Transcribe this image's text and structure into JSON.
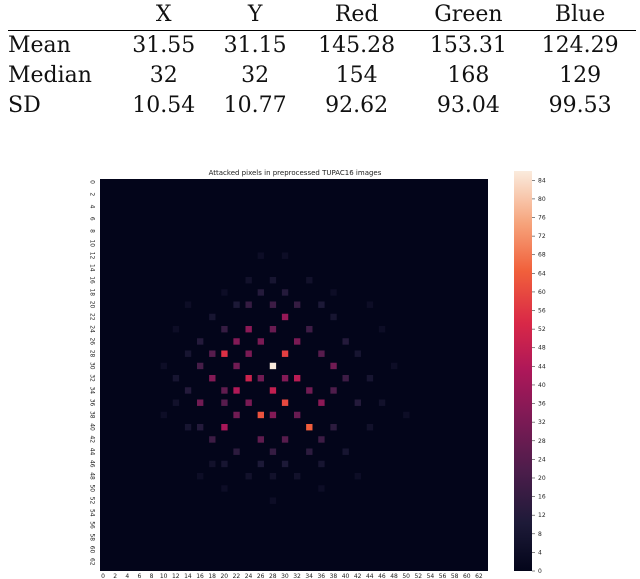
{
  "table": {
    "columns": [
      "X",
      "Y",
      "Red",
      "Green",
      "Blue"
    ],
    "rows": [
      {
        "label": "Mean",
        "values": [
          "31.55",
          "31.15",
          "145.28",
          "153.31",
          "124.29"
        ]
      },
      {
        "label": "Median",
        "values": [
          "32",
          "32",
          "154",
          "168",
          "129"
        ]
      },
      {
        "label": "SD",
        "values": [
          "10.54",
          "10.77",
          "92.62",
          "93.04",
          "99.53"
        ]
      }
    ]
  },
  "chart_data": {
    "type": "heatmap",
    "title": "Attacked pixels in preprocessed TUPAC16 images",
    "grid_size": 64,
    "x_tick_labels": [
      "0",
      "2",
      "4",
      "6",
      "8",
      "10",
      "12",
      "14",
      "16",
      "18",
      "20",
      "22",
      "24",
      "26",
      "28",
      "30",
      "32",
      "34",
      "36",
      "38",
      "40",
      "42",
      "44",
      "46",
      "48",
      "50",
      "52",
      "54",
      "56",
      "58",
      "60",
      "62"
    ],
    "y_tick_labels": [
      "0",
      "2",
      "4",
      "6",
      "8",
      "10",
      "12",
      "14",
      "16",
      "18",
      "20",
      "22",
      "24",
      "26",
      "28",
      "30",
      "32",
      "34",
      "36",
      "38",
      "40",
      "42",
      "44",
      "46",
      "48",
      "50",
      "52",
      "54",
      "56",
      "58",
      "60",
      "62"
    ],
    "colorbar": {
      "min": 0,
      "max": 86,
      "ticks": [
        0,
        4,
        8,
        12,
        16,
        20,
        24,
        28,
        32,
        36,
        40,
        44,
        48,
        52,
        56,
        60,
        64,
        68,
        72,
        76,
        80,
        84
      ],
      "colormap": "rocket"
    },
    "background_value": 0,
    "cells": [
      {
        "x": 28,
        "y": 30,
        "value": 86
      },
      {
        "x": 20,
        "y": 28,
        "value": 55
      },
      {
        "x": 30,
        "y": 28,
        "value": 58
      },
      {
        "x": 26,
        "y": 38,
        "value": 62
      },
      {
        "x": 34,
        "y": 40,
        "value": 64
      },
      {
        "x": 30,
        "y": 36,
        "value": 60
      },
      {
        "x": 24,
        "y": 32,
        "value": 50
      },
      {
        "x": 28,
        "y": 34,
        "value": 48
      },
      {
        "x": 22,
        "y": 34,
        "value": 44
      },
      {
        "x": 32,
        "y": 32,
        "value": 46
      },
      {
        "x": 20,
        "y": 40,
        "value": 42
      },
      {
        "x": 24,
        "y": 24,
        "value": 36
      },
      {
        "x": 30,
        "y": 22,
        "value": 38
      },
      {
        "x": 18,
        "y": 32,
        "value": 34
      },
      {
        "x": 36,
        "y": 36,
        "value": 36
      },
      {
        "x": 26,
        "y": 26,
        "value": 32
      },
      {
        "x": 16,
        "y": 36,
        "value": 30
      },
      {
        "x": 38,
        "y": 30,
        "value": 30
      },
      {
        "x": 22,
        "y": 26,
        "value": 34
      },
      {
        "x": 32,
        "y": 26,
        "value": 32
      },
      {
        "x": 28,
        "y": 24,
        "value": 28
      },
      {
        "x": 24,
        "y": 28,
        "value": 32
      },
      {
        "x": 26,
        "y": 32,
        "value": 30
      },
      {
        "x": 22,
        "y": 30,
        "value": 30
      },
      {
        "x": 30,
        "y": 32,
        "value": 34
      },
      {
        "x": 34,
        "y": 34,
        "value": 30
      },
      {
        "x": 28,
        "y": 38,
        "value": 34
      },
      {
        "x": 24,
        "y": 36,
        "value": 32
      },
      {
        "x": 22,
        "y": 38,
        "value": 30
      },
      {
        "x": 32,
        "y": 38,
        "value": 28
      },
      {
        "x": 26,
        "y": 42,
        "value": 26
      },
      {
        "x": 30,
        "y": 42,
        "value": 24
      },
      {
        "x": 36,
        "y": 28,
        "value": 24
      },
      {
        "x": 18,
        "y": 28,
        "value": 24
      },
      {
        "x": 20,
        "y": 34,
        "value": 26
      },
      {
        "x": 20,
        "y": 36,
        "value": 24
      },
      {
        "x": 38,
        "y": 34,
        "value": 22
      },
      {
        "x": 16,
        "y": 30,
        "value": 20
      },
      {
        "x": 40,
        "y": 32,
        "value": 18
      },
      {
        "x": 36,
        "y": 42,
        "value": 18
      },
      {
        "x": 18,
        "y": 42,
        "value": 18
      },
      {
        "x": 28,
        "y": 20,
        "value": 18
      },
      {
        "x": 32,
        "y": 20,
        "value": 16
      },
      {
        "x": 24,
        "y": 20,
        "value": 16
      },
      {
        "x": 34,
        "y": 24,
        "value": 18
      },
      {
        "x": 20,
        "y": 24,
        "value": 16
      },
      {
        "x": 28,
        "y": 44,
        "value": 16
      },
      {
        "x": 22,
        "y": 44,
        "value": 14
      },
      {
        "x": 34,
        "y": 44,
        "value": 14
      },
      {
        "x": 14,
        "y": 34,
        "value": 12
      },
      {
        "x": 42,
        "y": 36,
        "value": 12
      },
      {
        "x": 40,
        "y": 26,
        "value": 12
      },
      {
        "x": 16,
        "y": 26,
        "value": 12
      },
      {
        "x": 38,
        "y": 40,
        "value": 14
      },
      {
        "x": 16,
        "y": 40,
        "value": 12
      },
      {
        "x": 26,
        "y": 18,
        "value": 12
      },
      {
        "x": 30,
        "y": 18,
        "value": 12
      },
      {
        "x": 26,
        "y": 46,
        "value": 10
      },
      {
        "x": 30,
        "y": 46,
        "value": 10
      },
      {
        "x": 20,
        "y": 46,
        "value": 8
      },
      {
        "x": 36,
        "y": 46,
        "value": 8
      },
      {
        "x": 12,
        "y": 32,
        "value": 8
      },
      {
        "x": 44,
        "y": 32,
        "value": 8
      },
      {
        "x": 42,
        "y": 28,
        "value": 8
      },
      {
        "x": 14,
        "y": 28,
        "value": 8
      },
      {
        "x": 22,
        "y": 20,
        "value": 10
      },
      {
        "x": 36,
        "y": 20,
        "value": 10
      },
      {
        "x": 18,
        "y": 22,
        "value": 8
      },
      {
        "x": 38,
        "y": 22,
        "value": 8
      },
      {
        "x": 18,
        "y": 46,
        "value": 6
      },
      {
        "x": 40,
        "y": 44,
        "value": 8
      },
      {
        "x": 14,
        "y": 40,
        "value": 8
      },
      {
        "x": 44,
        "y": 40,
        "value": 6
      },
      {
        "x": 12,
        "y": 36,
        "value": 6
      },
      {
        "x": 46,
        "y": 36,
        "value": 6
      },
      {
        "x": 28,
        "y": 16,
        "value": 8
      },
      {
        "x": 28,
        "y": 48,
        "value": 6
      },
      {
        "x": 24,
        "y": 48,
        "value": 6
      },
      {
        "x": 32,
        "y": 48,
        "value": 6
      },
      {
        "x": 24,
        "y": 16,
        "value": 6
      },
      {
        "x": 34,
        "y": 16,
        "value": 6
      },
      {
        "x": 10,
        "y": 30,
        "value": 4
      },
      {
        "x": 48,
        "y": 30,
        "value": 4
      },
      {
        "x": 46,
        "y": 24,
        "value": 4
      },
      {
        "x": 12,
        "y": 24,
        "value": 4
      },
      {
        "x": 20,
        "y": 18,
        "value": 4
      },
      {
        "x": 38,
        "y": 18,
        "value": 4
      },
      {
        "x": 20,
        "y": 50,
        "value": 4
      },
      {
        "x": 36,
        "y": 50,
        "value": 4
      },
      {
        "x": 28,
        "y": 52,
        "value": 4
      },
      {
        "x": 30,
        "y": 12,
        "value": 4
      },
      {
        "x": 26,
        "y": 12,
        "value": 4
      },
      {
        "x": 10,
        "y": 38,
        "value": 4
      },
      {
        "x": 50,
        "y": 38,
        "value": 4
      },
      {
        "x": 14,
        "y": 20,
        "value": 4
      },
      {
        "x": 44,
        "y": 20,
        "value": 4
      },
      {
        "x": 16,
        "y": 48,
        "value": 4
      },
      {
        "x": 42,
        "y": 48,
        "value": 4
      }
    ]
  }
}
